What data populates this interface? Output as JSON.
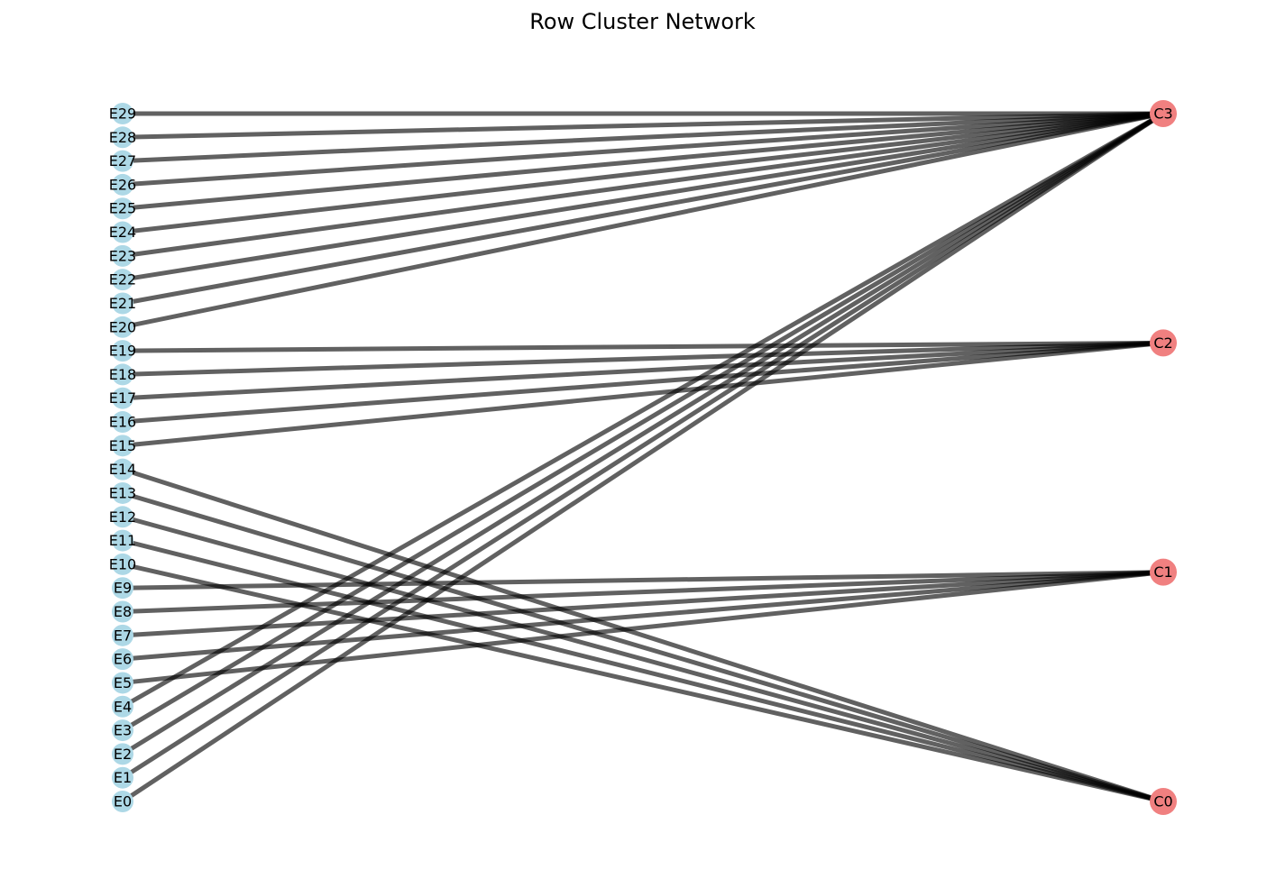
{
  "title": "Row Cluster Network",
  "colors": {
    "element_node": "#add8e6",
    "cluster_node": "#f08080",
    "edge": "#000000",
    "label": "#000000"
  },
  "cluster_nodes": [
    "C0",
    "C1",
    "C2",
    "C3"
  ],
  "element_nodes": [
    "E0",
    "E1",
    "E2",
    "E3",
    "E4",
    "E5",
    "E6",
    "E7",
    "E8",
    "E9",
    "E10",
    "E11",
    "E12",
    "E13",
    "E14",
    "E15",
    "E16",
    "E17",
    "E18",
    "E19",
    "E20",
    "E21",
    "E22",
    "E23",
    "E24",
    "E25",
    "E26",
    "E27",
    "E28",
    "E29"
  ],
  "edges": [
    {
      "source": "E0",
      "target": "C3"
    },
    {
      "source": "E1",
      "target": "C3"
    },
    {
      "source": "E2",
      "target": "C3"
    },
    {
      "source": "E3",
      "target": "C3"
    },
    {
      "source": "E4",
      "target": "C3"
    },
    {
      "source": "E5",
      "target": "C1"
    },
    {
      "source": "E6",
      "target": "C1"
    },
    {
      "source": "E7",
      "target": "C1"
    },
    {
      "source": "E8",
      "target": "C1"
    },
    {
      "source": "E9",
      "target": "C1"
    },
    {
      "source": "E10",
      "target": "C0"
    },
    {
      "source": "E11",
      "target": "C0"
    },
    {
      "source": "E12",
      "target": "C0"
    },
    {
      "source": "E13",
      "target": "C0"
    },
    {
      "source": "E14",
      "target": "C0"
    },
    {
      "source": "E15",
      "target": "C2"
    },
    {
      "source": "E16",
      "target": "C2"
    },
    {
      "source": "E17",
      "target": "C2"
    },
    {
      "source": "E18",
      "target": "C2"
    },
    {
      "source": "E19",
      "target": "C2"
    },
    {
      "source": "E20",
      "target": "C3"
    },
    {
      "source": "E21",
      "target": "C3"
    },
    {
      "source": "E22",
      "target": "C3"
    },
    {
      "source": "E23",
      "target": "C3"
    },
    {
      "source": "E24",
      "target": "C3"
    },
    {
      "source": "E25",
      "target": "C3"
    },
    {
      "source": "E26",
      "target": "C3"
    },
    {
      "source": "E27",
      "target": "C3"
    },
    {
      "source": "E28",
      "target": "C3"
    },
    {
      "source": "E29",
      "target": "C3"
    }
  ]
}
